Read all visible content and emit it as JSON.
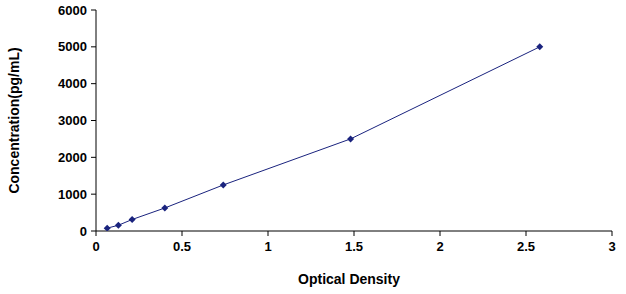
{
  "chart_data": {
    "type": "line",
    "x_label": "Optical Density",
    "y_label": "Concentration(pg/mL)",
    "x": [
      0.065,
      0.13,
      0.21,
      0.4,
      0.74,
      1.48,
      2.58
    ],
    "values": [
      78,
      156,
      312,
      625,
      1250,
      2500,
      5000
    ],
    "xlim": [
      0,
      3
    ],
    "ylim": [
      0,
      6000
    ],
    "xticks": [
      0,
      0.5,
      1,
      1.5,
      2,
      2.5,
      3
    ],
    "yticks": [
      0,
      1000,
      2000,
      3000,
      4000,
      5000,
      6000
    ],
    "color": "#1a237e",
    "marker": "diamond",
    "grid": false
  }
}
